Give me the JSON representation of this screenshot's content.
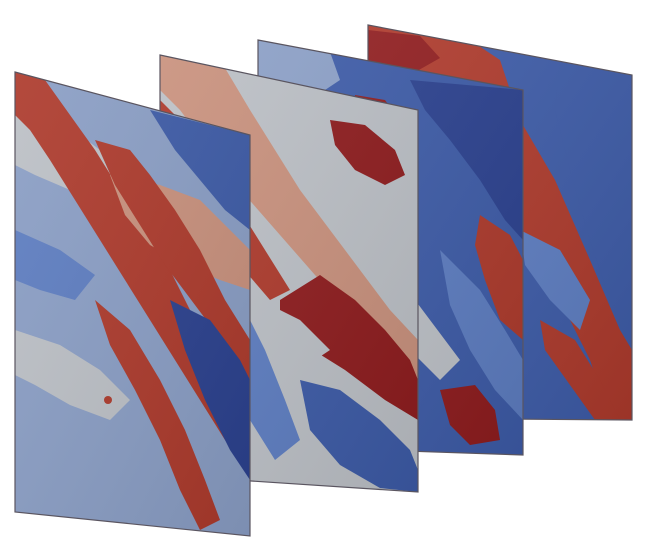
{
  "figure": {
    "kind": "3d-rendering",
    "slice_count": 4,
    "colors": {
      "background": "#ffffff",
      "deep_red": "#8e1c1e",
      "red": "#ad3a2c",
      "salmon": "#c9917d",
      "light_gray": "#bcc0c6",
      "gray_blue": "#8a9ec5",
      "mid_blue": "#5d7dc1",
      "blue": "#3d5ba7",
      "dark_blue": "#2b418f",
      "edge": "#5a5560"
    },
    "slices": [
      {
        "index": 1,
        "base": "gray_blue",
        "bands": [
          "light_gray",
          "red",
          "mid_blue",
          "salmon",
          "red",
          "blue",
          "light_gray",
          "red",
          "dark_blue"
        ]
      },
      {
        "index": 2,
        "base": "light_gray",
        "bands": [
          "salmon",
          "red",
          "light_gray",
          "deep_red",
          "blue",
          "mid_blue",
          "light_gray"
        ]
      },
      {
        "index": 3,
        "base": "blue",
        "bands": [
          "gray_blue",
          "deep_red",
          "dark_blue",
          "light_gray",
          "blue",
          "red",
          "mid_blue",
          "deep_red"
        ]
      },
      {
        "index": 4,
        "base": "blue",
        "bands": [
          "red",
          "light_gray",
          "deep_red",
          "mid_blue",
          "red",
          "blue"
        ]
      }
    ]
  }
}
